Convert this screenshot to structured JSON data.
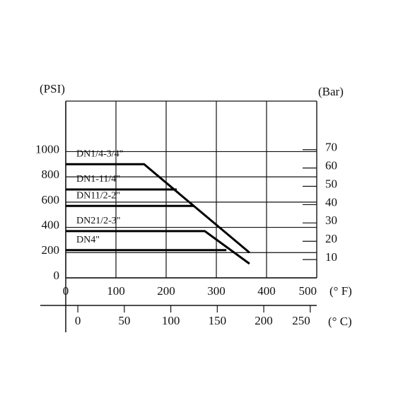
{
  "chart_data": {
    "type": "line",
    "y_label": "(PSI)",
    "y2_label": "(Bar)",
    "x_label": "(° F)",
    "x2_label": "(° C)",
    "xlim": [
      0,
      500
    ],
    "xticks": [
      0,
      100,
      200,
      300,
      400,
      500
    ],
    "x2lim": [
      -13,
      257
    ],
    "x2ticks": [
      0,
      50,
      100,
      150,
      200,
      250
    ],
    "ylim": [
      0,
      1400
    ],
    "yticks": [
      0,
      200,
      400,
      600,
      800,
      1000
    ],
    "y2lim": [
      0,
      96.55
    ],
    "y2ticks": [
      10,
      20,
      30,
      40,
      50,
      60,
      70
    ],
    "grid": true,
    "series": [
      {
        "name": "DN1/4-3/4\"",
        "color": "#000000",
        "x": [
          0,
          156,
          366
        ],
        "values": [
          900,
          900,
          200
        ]
      },
      {
        "name": "DN1-11/4\"",
        "color": "#000000",
        "x": [
          0,
          221
        ],
        "values": [
          700,
          700
        ]
      },
      {
        "name": "DN11/2-2\"",
        "color": "#000000",
        "x": [
          0,
          256
        ],
        "values": [
          570,
          570
        ]
      },
      {
        "name": "DN21/2-3\"",
        "color": "#000000",
        "x": [
          0,
          277,
          366
        ],
        "values": [
          370,
          370,
          112
        ]
      },
      {
        "name": "DN4\"",
        "color": "#000000",
        "x": [
          0,
          320
        ],
        "values": [
          220,
          220
        ]
      }
    ]
  }
}
